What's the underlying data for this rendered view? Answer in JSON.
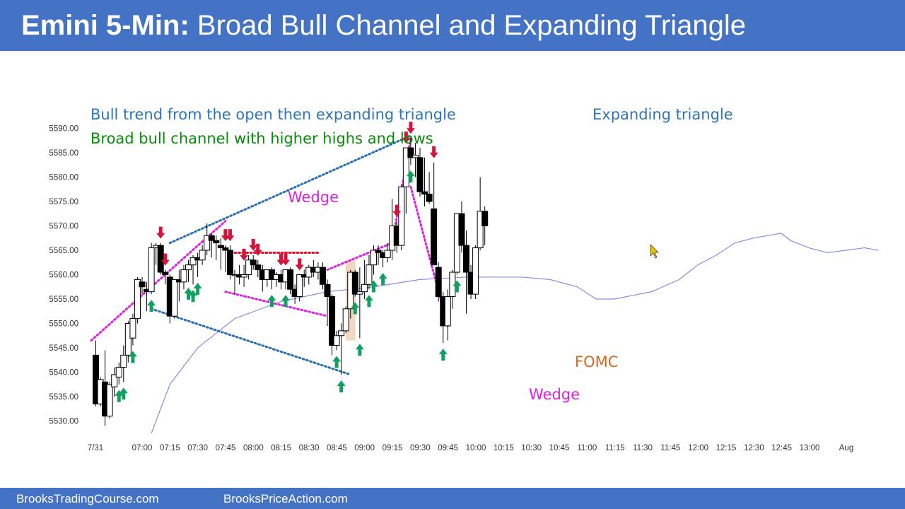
{
  "header": {
    "title_bold": "Emini 5-Min:",
    "title_rest": " Broad Bull Channel and Expanding Triangle"
  },
  "footer": {
    "left": "BrooksTradingCourse.com",
    "right": "BrooksPriceAction.com"
  },
  "colors": {
    "header_bg": "#4472c4",
    "blue_text": "#2e75b6",
    "green_text": "#0a8a0a",
    "magenta": "#e020e0",
    "blue_dotted": "#2a6fb0",
    "red_dotted": "#e0102a",
    "ema": "#8a8ae8",
    "bull_arrow": "#12a060",
    "bear_arrow": "#d4143c",
    "fomc_text": "#d2691e",
    "fomc_band": "#f0d0b8"
  },
  "annotations": {
    "bull_trend": "Bull trend from the open then expanding triangle",
    "broad_channel": "Broad bull channel with higher highs and lows",
    "expanding_triangle": "Expanding triangle",
    "wedge_top": "Wedge",
    "wedge_bottom": "Wedge",
    "fomc": "FOMC"
  },
  "chart_data": {
    "type": "candlestick",
    "interval": "5-Min",
    "y_ticks": [
      "5590.00",
      "5585.00",
      "5580.00",
      "5575.00",
      "5570.00",
      "5565.00",
      "5560.00",
      "5555.00",
      "5550.00",
      "5545.00",
      "5540.00",
      "5535.00",
      "5530.00"
    ],
    "ylim": [
      5527,
      5591
    ],
    "x_ticks": [
      "7/31",
      "07:00",
      "07:15",
      "07:30",
      "07:45",
      "08:00",
      "08:15",
      "08:30",
      "08:45",
      "09:00",
      "09:15",
      "09:30",
      "09:45",
      "10:00",
      "10:15",
      "10:30",
      "10:45",
      "11:00",
      "11:15",
      "11:30",
      "11:45",
      "12:00",
      "12:15",
      "12:30",
      "12:45",
      "13:00",
      "Aug"
    ],
    "candles": [
      {
        "o": 5543.5,
        "h": 5546.5,
        "l": 5533.0,
        "c": 5533.5
      },
      {
        "o": 5533.5,
        "h": 5539.0,
        "l": 5533.0,
        "c": 5538.5
      },
      {
        "o": 5538.0,
        "h": 5544.5,
        "l": 5529.0,
        "c": 5531.0
      },
      {
        "o": 5531.0,
        "h": 5538.0,
        "l": 5530.5,
        "c": 5537.5
      },
      {
        "o": 5537.0,
        "h": 5541.0,
        "l": 5535.0,
        "c": 5539.5
      },
      {
        "o": 5539.0,
        "h": 5542.0,
        "l": 5537.5,
        "c": 5541.0
      },
      {
        "o": 5541.0,
        "h": 5545.5,
        "l": 5538.0,
        "c": 5543.5
      },
      {
        "o": 5543.5,
        "h": 5550.5,
        "l": 5542.0,
        "c": 5550.0
      },
      {
        "o": 5547.0,
        "h": 5552.0,
        "l": 5545.5,
        "c": 5551.0
      },
      {
        "o": 5551.0,
        "h": 5559.5,
        "l": 5550.0,
        "c": 5559.0
      },
      {
        "o": 5558.5,
        "h": 5559.5,
        "l": 5556.0,
        "c": 5557.5
      },
      {
        "o": 5557.0,
        "h": 5558.5,
        "l": 5552.5,
        "c": 5556.5
      },
      {
        "o": 5556.5,
        "h": 5566.5,
        "l": 5556.0,
        "c": 5565.5
      },
      {
        "o": 5565.5,
        "h": 5566.5,
        "l": 5562.0,
        "c": 5566.0
      },
      {
        "o": 5566.0,
        "h": 5566.5,
        "l": 5560.0,
        "c": 5560.5
      },
      {
        "o": 5560.5,
        "h": 5561.0,
        "l": 5558.0,
        "c": 5560.0
      },
      {
        "o": 5559.5,
        "h": 5560.0,
        "l": 5550.0,
        "c": 5551.5
      },
      {
        "o": 5551.5,
        "h": 5559.0,
        "l": 5551.0,
        "c": 5559.0
      },
      {
        "o": 5559.0,
        "h": 5561.0,
        "l": 5554.5,
        "c": 5558.5
      },
      {
        "o": 5558.5,
        "h": 5562.0,
        "l": 5557.0,
        "c": 5561.0
      },
      {
        "o": 5561.0,
        "h": 5563.0,
        "l": 5558.5,
        "c": 5562.0
      },
      {
        "o": 5562.0,
        "h": 5564.0,
        "l": 5558.0,
        "c": 5563.5
      },
      {
        "o": 5563.5,
        "h": 5564.5,
        "l": 5559.5,
        "c": 5563.0
      },
      {
        "o": 5563.0,
        "h": 5566.0,
        "l": 5562.0,
        "c": 5565.0
      },
      {
        "o": 5565.0,
        "h": 5570.5,
        "l": 5564.0,
        "c": 5568.0
      },
      {
        "o": 5568.0,
        "h": 5568.5,
        "l": 5563.5,
        "c": 5567.0
      },
      {
        "o": 5567.0,
        "h": 5568.0,
        "l": 5563.0,
        "c": 5566.5
      },
      {
        "o": 5566.0,
        "h": 5567.5,
        "l": 5561.0,
        "c": 5565.5
      },
      {
        "o": 5565.5,
        "h": 5566.0,
        "l": 5560.5,
        "c": 5565.0
      },
      {
        "o": 5565.0,
        "h": 5566.0,
        "l": 5559.0,
        "c": 5560.0
      },
      {
        "o": 5560.0,
        "h": 5561.0,
        "l": 5556.0,
        "c": 5560.0
      },
      {
        "o": 5560.0,
        "h": 5562.0,
        "l": 5558.0,
        "c": 5559.5
      },
      {
        "o": 5559.5,
        "h": 5562.0,
        "l": 5557.5,
        "c": 5560.0
      },
      {
        "o": 5560.0,
        "h": 5564.0,
        "l": 5559.0,
        "c": 5563.0
      },
      {
        "o": 5563.0,
        "h": 5564.0,
        "l": 5561.0,
        "c": 5562.0
      },
      {
        "o": 5562.0,
        "h": 5563.0,
        "l": 5559.5,
        "c": 5561.0
      },
      {
        "o": 5561.0,
        "h": 5562.0,
        "l": 5556.5,
        "c": 5559.0
      },
      {
        "o": 5559.0,
        "h": 5561.0,
        "l": 5557.5,
        "c": 5561.0
      },
      {
        "o": 5561.0,
        "h": 5561.5,
        "l": 5557.0,
        "c": 5559.0
      },
      {
        "o": 5559.0,
        "h": 5560.5,
        "l": 5557.5,
        "c": 5560.0
      },
      {
        "o": 5560.0,
        "h": 5561.0,
        "l": 5557.0,
        "c": 5558.5
      },
      {
        "o": 5558.5,
        "h": 5561.0,
        "l": 5557.0,
        "c": 5561.0
      },
      {
        "o": 5561.0,
        "h": 5561.5,
        "l": 5556.0,
        "c": 5557.0
      },
      {
        "o": 5557.0,
        "h": 5558.0,
        "l": 5554.0,
        "c": 5555.5
      },
      {
        "o": 5555.5,
        "h": 5560.0,
        "l": 5554.5,
        "c": 5560.0
      },
      {
        "o": 5560.0,
        "h": 5561.0,
        "l": 5557.5,
        "c": 5559.5
      },
      {
        "o": 5559.5,
        "h": 5562.0,
        "l": 5558.0,
        "c": 5561.5
      },
      {
        "o": 5561.5,
        "h": 5563.0,
        "l": 5559.5,
        "c": 5560.5
      },
      {
        "o": 5560.5,
        "h": 5562.5,
        "l": 5559.0,
        "c": 5561.5
      },
      {
        "o": 5561.5,
        "h": 5562.5,
        "l": 5557.0,
        "c": 5558.0
      },
      {
        "o": 5558.0,
        "h": 5559.0,
        "l": 5549.5,
        "c": 5555.5
      },
      {
        "o": 5555.5,
        "h": 5556.0,
        "l": 5543.5,
        "c": 5545.5
      },
      {
        "o": 5545.5,
        "h": 5548.5,
        "l": 5544.5,
        "c": 5547.5
      },
      {
        "o": 5547.5,
        "h": 5550.0,
        "l": 5539.5,
        "c": 5548.5
      },
      {
        "o": 5548.5,
        "h": 5553.5,
        "l": 5548.0,
        "c": 5553.0
      },
      {
        "o": 5553.0,
        "h": 5561.0,
        "l": 5551.0,
        "c": 5560.5
      },
      {
        "o": 5560.5,
        "h": 5561.0,
        "l": 5555.5,
        "c": 5556.0
      },
      {
        "o": 5556.0,
        "h": 5561.5,
        "l": 5547.0,
        "c": 5556.5
      },
      {
        "o": 5556.5,
        "h": 5563.0,
        "l": 5555.0,
        "c": 5558.0
      },
      {
        "o": 5558.0,
        "h": 5564.0,
        "l": 5557.0,
        "c": 5562.0
      },
      {
        "o": 5562.0,
        "h": 5566.0,
        "l": 5560.0,
        "c": 5565.0
      },
      {
        "o": 5565.0,
        "h": 5566.0,
        "l": 5562.0,
        "c": 5564.5
      },
      {
        "o": 5564.5,
        "h": 5565.0,
        "l": 5561.5,
        "c": 5563.5
      },
      {
        "o": 5563.5,
        "h": 5566.5,
        "l": 5562.5,
        "c": 5565.0
      },
      {
        "o": 5565.0,
        "h": 5575.5,
        "l": 5563.0,
        "c": 5570.0
      },
      {
        "o": 5570.0,
        "h": 5571.0,
        "l": 5564.5,
        "c": 5566.0
      },
      {
        "o": 5566.0,
        "h": 5578.5,
        "l": 5565.0,
        "c": 5578.0
      },
      {
        "o": 5578.0,
        "h": 5586.0,
        "l": 5572.5,
        "c": 5586.0
      },
      {
        "o": 5586.0,
        "h": 5588.0,
        "l": 5582.5,
        "c": 5584.0
      },
      {
        "o": 5584.0,
        "h": 5587.0,
        "l": 5580.0,
        "c": 5584.5
      },
      {
        "o": 5584.0,
        "h": 5586.0,
        "l": 5576.0,
        "c": 5577.0
      },
      {
        "o": 5577.0,
        "h": 5584.0,
        "l": 5574.0,
        "c": 5576.5
      },
      {
        "o": 5576.5,
        "h": 5581.0,
        "l": 5574.5,
        "c": 5575.0
      },
      {
        "o": 5573.5,
        "h": 5583.0,
        "l": 5562.0,
        "c": 5562.0
      },
      {
        "o": 5561.5,
        "h": 5562.5,
        "l": 5554.5,
        "c": 5555.5
      },
      {
        "o": 5555.5,
        "h": 5556.5,
        "l": 5546.0,
        "c": 5549.5
      },
      {
        "o": 5549.5,
        "h": 5557.0,
        "l": 5546.5,
        "c": 5555.5
      },
      {
        "o": 5555.5,
        "h": 5561.0,
        "l": 5553.0,
        "c": 5560.5
      },
      {
        "o": 5560.5,
        "h": 5572.5,
        "l": 5560.0,
        "c": 5572.5
      },
      {
        "o": 5572.5,
        "h": 5575.0,
        "l": 5564.5,
        "c": 5566.0
      },
      {
        "o": 5566.0,
        "h": 5569.0,
        "l": 5552.0,
        "c": 5560.5
      },
      {
        "o": 5560.5,
        "h": 5562.0,
        "l": 5555.0,
        "c": 5556.0
      },
      {
        "o": 5556.0,
        "h": 5566.0,
        "l": 5555.0,
        "c": 5565.5
      },
      {
        "o": 5565.5,
        "h": 5580.0,
        "l": 5565.0,
        "c": 5573.0
      },
      {
        "o": 5573.0,
        "h": 5574.0,
        "l": 5566.0,
        "c": 5570.0
      }
    ],
    "ema": [
      [
        12,
        5527.5
      ],
      [
        16,
        5537.5
      ],
      [
        22,
        5545.0
      ],
      [
        30,
        5551.0
      ],
      [
        40,
        5554.5
      ],
      [
        50,
        5556.5
      ],
      [
        60,
        5557.5
      ],
      [
        70,
        5559.0
      ],
      [
        80,
        5559.5
      ],
      [
        92,
        5559.5
      ],
      [
        98,
        5559.0
      ],
      [
        104,
        5557.5
      ],
      [
        108,
        5555.0
      ],
      [
        112,
        5555.0
      ],
      [
        120,
        5556.5
      ],
      [
        126,
        5559.0
      ],
      [
        130,
        5562.0
      ],
      [
        134,
        5564.0
      ],
      [
        138,
        5566.5
      ],
      [
        142,
        5567.5
      ],
      [
        145,
        5568.0
      ],
      [
        148,
        5568.5
      ],
      [
        150,
        5567.0
      ],
      [
        154,
        5565.5
      ],
      [
        158,
        5564.5
      ],
      [
        162,
        5565.0
      ],
      [
        166,
        5565.5
      ],
      [
        169,
        5565.0
      ]
    ],
    "bull_arrows_at": [
      5,
      6,
      8,
      12,
      20,
      21,
      22,
      38,
      41,
      52,
      53,
      56,
      57,
      59,
      60,
      62,
      68,
      75,
      78
    ],
    "bear_arrows_at": [
      14,
      15,
      28,
      29,
      32,
      34,
      35,
      40,
      41,
      44,
      65,
      67,
      68,
      73
    ],
    "lines": {
      "magenta_dotted": [
        [
          [
            -1,
            5546.5
          ],
          [
            28,
            5571.0
          ]
        ],
        [
          [
            28,
            5556.5
          ],
          [
            50,
            5551.5
          ]
        ],
        [
          [
            50,
            5561.0
          ],
          [
            64,
            5566.5
          ],
          [
            68,
            5588.0
          ]
        ],
        [
          [
            68,
            5578.0
          ],
          [
            76,
            5549.5
          ]
        ]
      ],
      "blue_dotted": [
        [
          [
            16,
            5566.5
          ],
          [
            68,
            5588.5
          ]
        ],
        [
          [
            12,
            5553.0
          ],
          [
            55,
            5539.5
          ]
        ]
      ],
      "red_dotted": [
        [
          [
            30,
            5564.5
          ],
          [
            48,
            5564.5
          ]
        ]
      ]
    }
  }
}
